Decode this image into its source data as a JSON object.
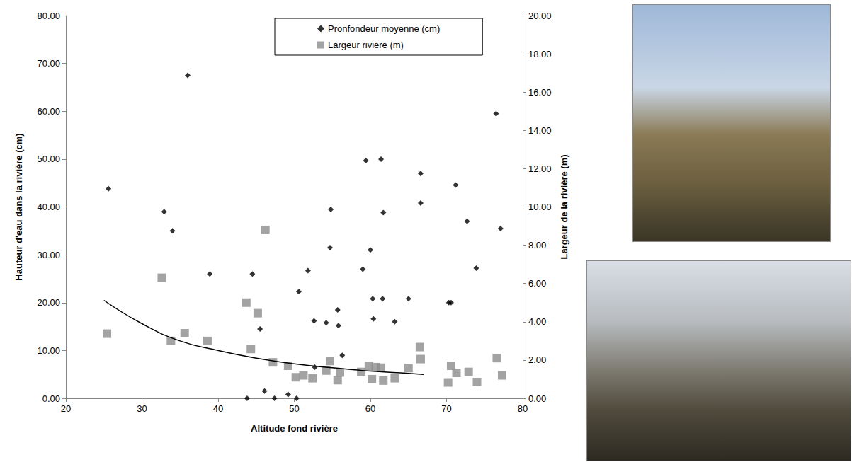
{
  "chart_data": {
    "type": "scatter",
    "x_label": "Altitude fond rivière",
    "y_label": "Hauteur d'eau dans la rivière (cm)",
    "y2_label": "Largeur de la rivière (m)",
    "xlim": [
      20,
      80
    ],
    "xticks": [
      20,
      30,
      40,
      50,
      60,
      70,
      80
    ],
    "ylim": [
      0,
      80
    ],
    "yticks": [
      {
        "value": 0,
        "label": "0.00"
      },
      {
        "value": 10,
        "label": "10.00"
      },
      {
        "value": 20,
        "label": "20.00"
      },
      {
        "value": 30,
        "label": "30.00"
      },
      {
        "value": 40,
        "label": "40.00"
      },
      {
        "value": 50,
        "label": "50.00"
      },
      {
        "value": 60,
        "label": "60.00"
      },
      {
        "value": 70,
        "label": "70.00"
      },
      {
        "value": 80,
        "label": "80.00"
      }
    ],
    "y2lim": [
      0,
      20
    ],
    "y2ticks": [
      {
        "value": 0,
        "label": "0.00"
      },
      {
        "value": 2,
        "label": "2.00"
      },
      {
        "value": 4,
        "label": "4.00"
      },
      {
        "value": 6,
        "label": "6.00"
      },
      {
        "value": 8,
        "label": "8.00"
      },
      {
        "value": 10,
        "label": "10.00"
      },
      {
        "value": 12,
        "label": "12.00"
      },
      {
        "value": 14,
        "label": "14.00"
      },
      {
        "value": 16,
        "label": "16.00"
      },
      {
        "value": 18,
        "label": "18.00"
      },
      {
        "value": 20,
        "label": "20.00"
      }
    ],
    "grid": false,
    "legend": "upper right",
    "series": [
      {
        "name": "Pronfondeur moyenne (cm)",
        "type": "scatter",
        "marker": "diamond",
        "color": "#000000",
        "x": [
          25.6,
          32.9,
          34.0,
          36.0,
          38.9,
          43.8,
          44.5,
          45.5,
          46.1,
          47.4,
          49.2,
          50.3,
          50.6,
          51.8,
          52.6,
          52.7,
          54.2,
          54.7,
          54.8,
          55.7,
          55.8,
          56.3,
          59.0,
          59.4,
          60.0,
          60.3,
          60.4,
          61.4,
          61.6,
          61.7,
          63.2,
          65.0,
          66.6,
          66.6,
          70.3,
          70.6,
          71.2,
          72.7,
          73.9,
          76.5,
          77.1
        ],
        "values": [
          43.8,
          39.0,
          35.0,
          67.5,
          26.0,
          0,
          26.0,
          14.5,
          1.5,
          0,
          0.8,
          0,
          22.3,
          26.7,
          16.2,
          6.5,
          15.8,
          31.5,
          39.5,
          18.5,
          15.2,
          9.0,
          27.0,
          49.7,
          31.0,
          20.8,
          16.6,
          50.0,
          20.8,
          38.8,
          16.0,
          20.8,
          47.0,
          40.8,
          20.0,
          20.0,
          44.6,
          37.0,
          27.2,
          59.5,
          35.5
        ]
      },
      {
        "name": "Largeur rivière (m)",
        "type": "scatter",
        "marker": "square",
        "color": "#8c8c8c",
        "axis": "y2",
        "x": [
          25.4,
          32.6,
          33.8,
          35.6,
          38.6,
          43.7,
          44.3,
          45.2,
          46.2,
          47.2,
          49.2,
          50.2,
          51.2,
          52.4,
          54.2,
          54.7,
          55.7,
          56.0,
          58.8,
          59.8,
          60.2,
          60.7,
          61.4,
          61.7,
          63.2,
          65.0,
          66.5,
          66.6,
          70.2,
          70.6,
          71.3,
          72.9,
          74.0,
          76.6,
          77.3
        ],
        "values": [
          3.38,
          6.3,
          3.0,
          3.4,
          3.0,
          5.0,
          2.58,
          4.45,
          8.8,
          1.88,
          1.7,
          1.1,
          1.2,
          1.05,
          1.45,
          1.95,
          0.95,
          1.35,
          1.38,
          1.68,
          1.0,
          1.63,
          1.6,
          0.93,
          1.05,
          1.58,
          2.68,
          2.05,
          0.83,
          1.7,
          1.33,
          1.38,
          0.85,
          2.1,
          1.2
        ]
      },
      {
        "type": "line",
        "line_style": "solid",
        "color": "#000000",
        "axis": "y2",
        "x": [
          25,
          30,
          35,
          40,
          45,
          50,
          55,
          60,
          65,
          67
        ],
        "values": [
          5.12,
          3.9,
          3.0,
          2.5,
          2.1,
          1.8,
          1.6,
          1.42,
          1.3,
          1.25
        ]
      }
    ]
  }
}
